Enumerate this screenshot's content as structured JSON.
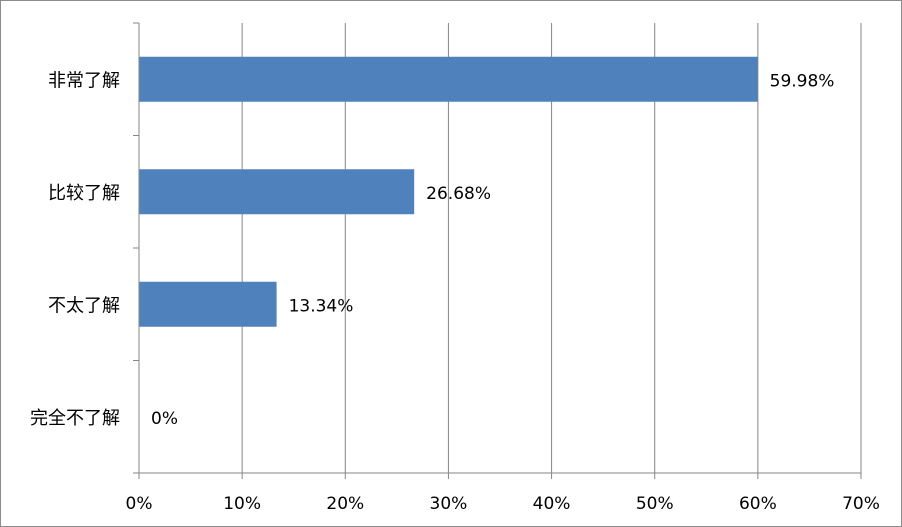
{
  "chart_data": {
    "type": "bar",
    "orientation": "horizontal",
    "categories": [
      "非常了解",
      "比较了解",
      "不太了解",
      "完全不了解"
    ],
    "values": [
      59.98,
      26.68,
      13.34,
      0
    ],
    "data_labels": [
      "59.98%",
      "26.68%",
      "13.34%",
      "0%"
    ],
    "xlim": [
      0,
      70
    ],
    "x_ticks": [
      0,
      10,
      20,
      30,
      40,
      50,
      60,
      70
    ],
    "x_tick_labels": [
      "0%",
      "10%",
      "20%",
      "30%",
      "40%",
      "50%",
      "60%",
      "70%"
    ],
    "title": "",
    "xlabel": "",
    "ylabel": "",
    "grid": "vertical",
    "legend": "none",
    "colors": {
      "bar": "#4f81bd",
      "grid": "#868686",
      "axis": "#868686",
      "border": "#8c8c8c"
    }
  }
}
